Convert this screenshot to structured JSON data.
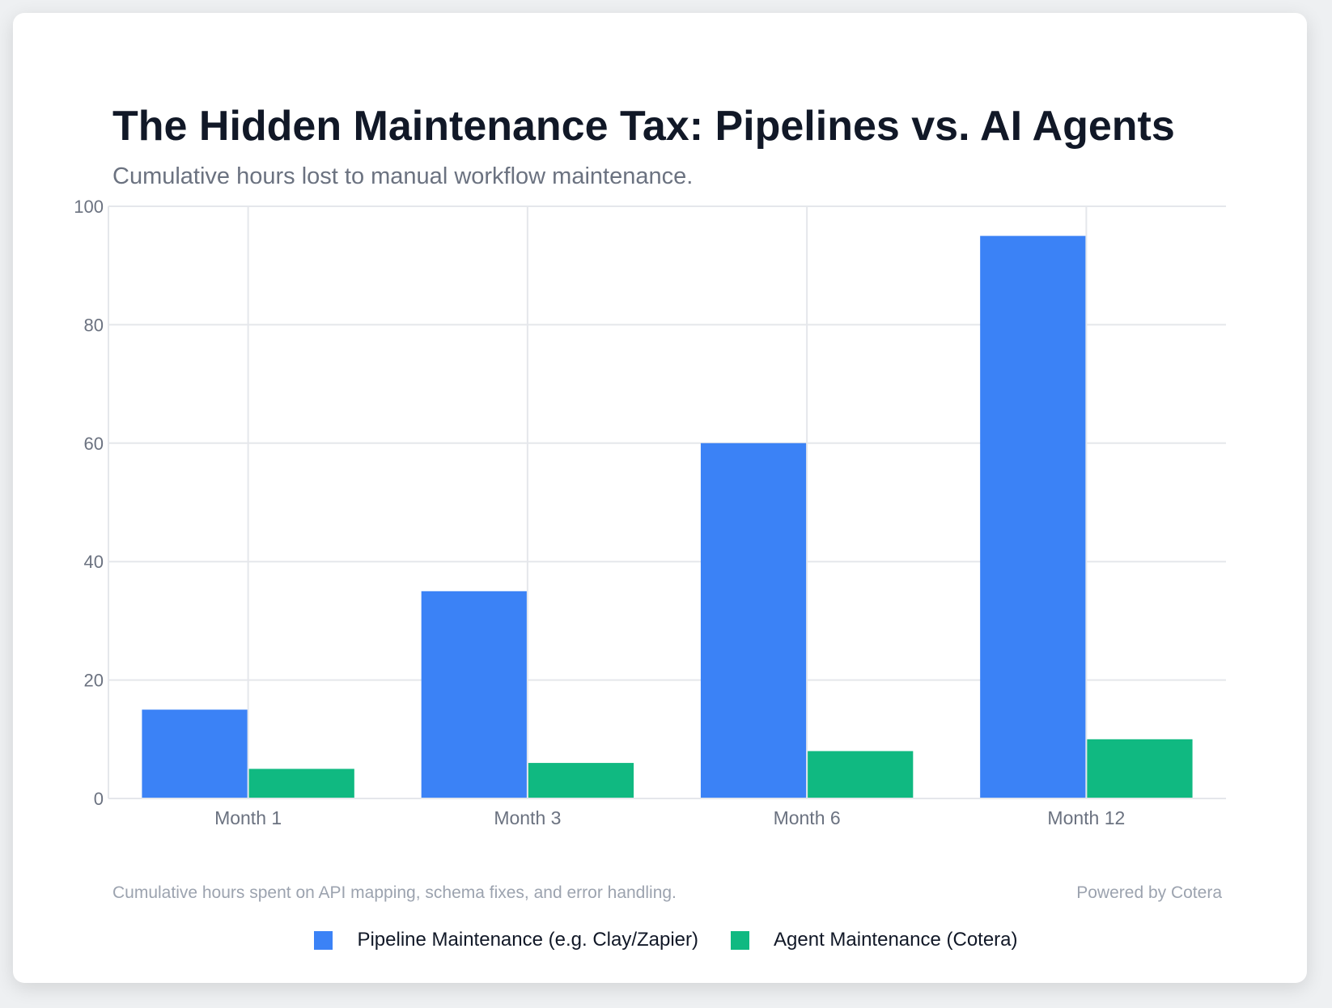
{
  "title": "The Hidden Maintenance Tax: Pipelines vs. AI Agents",
  "subtitle": "Cumulative hours lost to manual workflow maintenance.",
  "footnote": "Cumulative hours spent on API mapping, schema fixes, and error handling.",
  "powered_by": "Powered by Cotera",
  "chart_data": {
    "type": "bar",
    "categories": [
      "Month 1",
      "Month 3",
      "Month 6",
      "Month 12"
    ],
    "series": [
      {
        "name": "Pipeline Maintenance (e.g. Clay/Zapier)",
        "values": [
          15,
          35,
          60,
          95
        ],
        "color": "#3b82f6"
      },
      {
        "name": "Agent Maintenance (Cotera)",
        "values": [
          5,
          6,
          8,
          10
        ],
        "color": "#10b981"
      }
    ],
    "ylim": [
      0,
      100
    ],
    "yticks": [
      0,
      20,
      40,
      60,
      80,
      100
    ],
    "grid": true,
    "legend": "bottom"
  }
}
